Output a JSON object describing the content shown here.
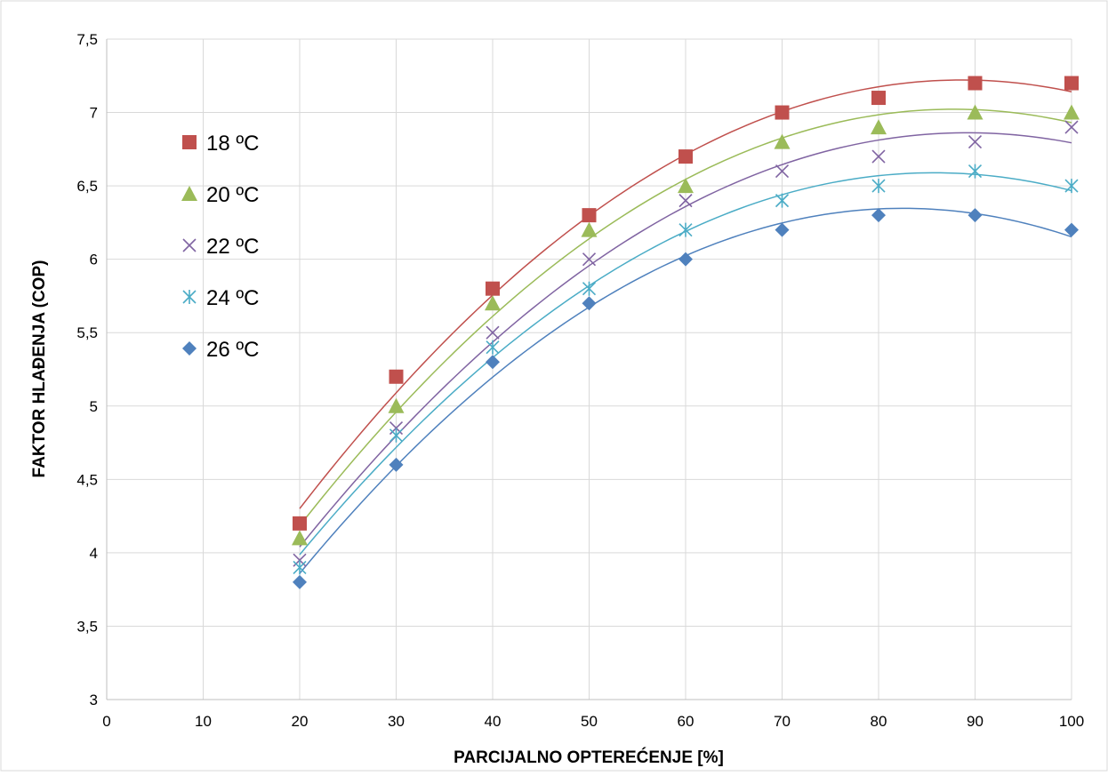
{
  "chart_data": {
    "type": "scatter",
    "xlabel": "PARCIJALNO OPTEREĆENJE [%]",
    "ylabel": "FAKTOR HLAĐENJA (COP)",
    "xlim": [
      0,
      100
    ],
    "ylim": [
      3,
      7.5
    ],
    "x_ticks": [
      "0",
      "10",
      "20",
      "30",
      "40",
      "50",
      "60",
      "70",
      "80",
      "90",
      "100"
    ],
    "y_ticks": [
      "3",
      "3,5",
      "4",
      "4,5",
      "5",
      "5,5",
      "6",
      "6,5",
      "7",
      "7,5"
    ],
    "grid": true,
    "legend_position": "left",
    "trendline": "polynomial order 2",
    "x": [
      20,
      30,
      40,
      50,
      60,
      70,
      80,
      90,
      100
    ],
    "series": [
      {
        "name": "18 ºC",
        "marker": "square",
        "color": "#C0504D",
        "values": [
          4.2,
          5.2,
          5.8,
          6.3,
          6.7,
          7.0,
          7.1,
          7.2,
          7.2
        ]
      },
      {
        "name": "20 ºC",
        "marker": "triangle",
        "color": "#9BBB59",
        "values": [
          4.1,
          5.0,
          5.7,
          6.2,
          6.5,
          6.8,
          6.9,
          7.0,
          7.0
        ]
      },
      {
        "name": "22 ºC",
        "marker": "x",
        "color": "#8064A2",
        "values": [
          3.95,
          4.85,
          5.5,
          6.0,
          6.4,
          6.6,
          6.7,
          6.8,
          6.9
        ]
      },
      {
        "name": "24 ºC",
        "marker": "star",
        "color": "#4BACC6",
        "values": [
          3.9,
          4.8,
          5.4,
          5.8,
          6.2,
          6.4,
          6.5,
          6.6,
          6.5
        ]
      },
      {
        "name": "26 ºC",
        "marker": "diamond",
        "color": "#4F81BD",
        "values": [
          3.8,
          4.6,
          5.3,
          5.7,
          6.0,
          6.2,
          6.3,
          6.3,
          6.2
        ]
      }
    ]
  }
}
